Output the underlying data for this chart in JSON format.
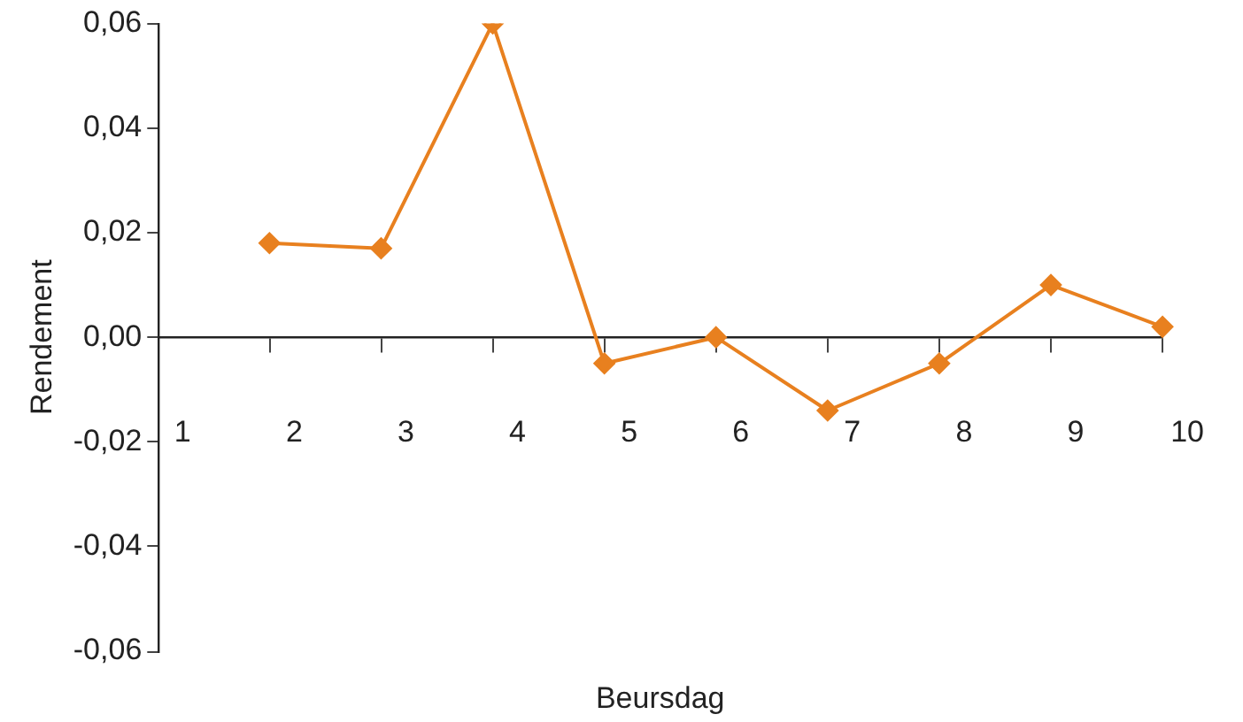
{
  "chart_data": {
    "type": "line",
    "xlabel": "Beursdag",
    "ylabel": "Rendement",
    "categories": [
      "1",
      "2",
      "3",
      "4",
      "5",
      "6",
      "7",
      "8",
      "9",
      "10"
    ],
    "series": [
      {
        "color": "#e8801f",
        "values": [
          null,
          0.018,
          0.017,
          0.06,
          -0.005,
          0.0,
          -0.014,
          -0.005,
          0.01,
          0.002
        ]
      }
    ],
    "ylim": [
      -0.06,
      0.06
    ],
    "yticks": [
      {
        "value": -0.06,
        "label": "-0,06"
      },
      {
        "value": -0.04,
        "label": "-0,04"
      },
      {
        "value": -0.02,
        "label": "-0,02"
      },
      {
        "value": 0,
        "label": "0,00"
      },
      {
        "value": 0.02,
        "label": "0,02"
      },
      {
        "value": 0.04,
        "label": "0,04"
      },
      {
        "value": 0.06,
        "label": "0,06"
      }
    ],
    "marker": "diamond",
    "grid": false,
    "legend": false
  }
}
